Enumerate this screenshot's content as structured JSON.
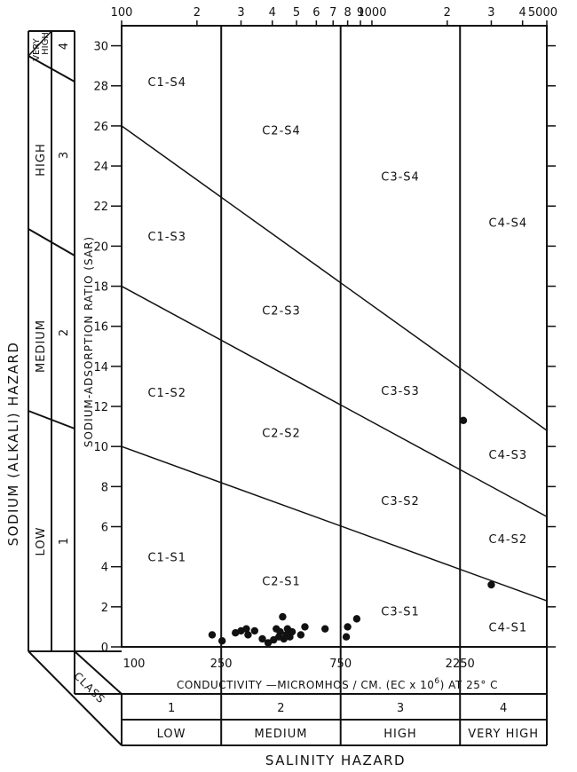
{
  "chart_data": {
    "type": "scatter",
    "title": "",
    "xlabel": "CONDUCTIVITY —MICROMHOS / CM.   (EC x 10",
    "xlabel_sup": "6",
    "xlabel_tail": ")  AT 25° C",
    "ylabel": "SODIUM-ADSORPTION   RATIO   (SAR)",
    "x_scale": "log",
    "xlim": [
      100,
      5000
    ],
    "ylim": [
      0,
      31
    ],
    "grid": false,
    "x_top_ticks": [
      {
        "v": 100,
        "t": "100"
      },
      {
        "v": 200,
        "t": "2"
      },
      {
        "v": 300,
        "t": "3"
      },
      {
        "v": 400,
        "t": "4"
      },
      {
        "v": 500,
        "t": "5"
      },
      {
        "v": 600,
        "t": "6"
      },
      {
        "v": 700,
        "t": "7"
      },
      {
        "v": 800,
        "t": "8"
      },
      {
        "v": 900,
        "t": "9"
      },
      {
        "v": 1000,
        "t": "1000"
      },
      {
        "v": 2000,
        "t": "2"
      },
      {
        "v": 3000,
        "t": "3"
      },
      {
        "v": 4000,
        "t": "4"
      },
      {
        "v": 5000,
        "t": "5000"
      }
    ],
    "x_bottom_ticks": [
      {
        "v": 100,
        "t": "100"
      },
      {
        "v": 250,
        "t": "250"
      },
      {
        "v": 750,
        "t": "750"
      },
      {
        "v": 2250,
        "t": "2250"
      }
    ],
    "y_ticks": [
      "0",
      "2",
      "4",
      "6",
      "8",
      "10",
      "12",
      "14",
      "16",
      "18",
      "20",
      "22",
      "24",
      "26",
      "28",
      "30"
    ],
    "salinity_boundaries": [
      250,
      750,
      2250
    ],
    "sodium_boundary_lines": [
      {
        "name": "S1-S2",
        "y_at_100": 10,
        "y_at_5000": 2.3
      },
      {
        "name": "S2-S3",
        "y_at_100": 18,
        "y_at_5000": 6.5
      },
      {
        "name": "S3-S4",
        "y_at_100": 26,
        "y_at_5000": 10.8
      }
    ],
    "zone_labels": [
      {
        "t": "C1-S4",
        "x": 152,
        "y": 28.2
      },
      {
        "t": "C1-S3",
        "x": 152,
        "y": 20.5
      },
      {
        "t": "C1-S2",
        "x": 152,
        "y": 12.7
      },
      {
        "t": "C1-S1",
        "x": 152,
        "y": 4.5
      },
      {
        "t": "C2-S4",
        "x": 435,
        "y": 25.8
      },
      {
        "t": "C2-S3",
        "x": 435,
        "y": 16.8
      },
      {
        "t": "C2-S2",
        "x": 435,
        "y": 10.7
      },
      {
        "t": "C2-S1",
        "x": 435,
        "y": 3.3
      },
      {
        "t": "C3-S4",
        "x": 1300,
        "y": 23.5
      },
      {
        "t": "C3-S3",
        "x": 1300,
        "y": 12.8
      },
      {
        "t": "C3-S2",
        "x": 1300,
        "y": 7.3
      },
      {
        "t": "C3-S1",
        "x": 1300,
        "y": 1.8
      },
      {
        "t": "C4-S4",
        "x": 3500,
        "y": 21.2
      },
      {
        "t": "C4-S3",
        "x": 3500,
        "y": 9.6
      },
      {
        "t": "C4-S2",
        "x": 3500,
        "y": 5.4
      },
      {
        "t": "C4-S1",
        "x": 3500,
        "y": 1.0
      }
    ],
    "points": [
      {
        "x": 230,
        "y": 0.6
      },
      {
        "x": 252,
        "y": 0.3
      },
      {
        "x": 285,
        "y": 0.7
      },
      {
        "x": 300,
        "y": 0.8
      },
      {
        "x": 315,
        "y": 0.9
      },
      {
        "x": 320,
        "y": 0.6
      },
      {
        "x": 340,
        "y": 0.8
      },
      {
        "x": 365,
        "y": 0.4
      },
      {
        "x": 385,
        "y": 0.2
      },
      {
        "x": 405,
        "y": 0.35
      },
      {
        "x": 415,
        "y": 0.9
      },
      {
        "x": 425,
        "y": 0.5
      },
      {
        "x": 430,
        "y": 0.75
      },
      {
        "x": 440,
        "y": 1.5
      },
      {
        "x": 445,
        "y": 0.4
      },
      {
        "x": 455,
        "y": 0.6
      },
      {
        "x": 460,
        "y": 0.9
      },
      {
        "x": 470,
        "y": 0.5
      },
      {
        "x": 480,
        "y": 0.75
      },
      {
        "x": 520,
        "y": 0.6
      },
      {
        "x": 540,
        "y": 1.0
      },
      {
        "x": 650,
        "y": 0.9
      },
      {
        "x": 790,
        "y": 0.5
      },
      {
        "x": 800,
        "y": 1.0
      },
      {
        "x": 870,
        "y": 1.4
      },
      {
        "x": 2320,
        "y": 11.3
      },
      {
        "x": 3000,
        "y": 3.1
      }
    ]
  },
  "sodium_hazard": {
    "title": "SODIUM  (ALKALI)  HAZARD",
    "levels": [
      {
        "name": "LOW",
        "class": "1"
      },
      {
        "name": "MEDIUM",
        "class": "2"
      },
      {
        "name": "HIGH",
        "class": "3"
      },
      {
        "name_line1": "VERY",
        "name_line2": "HIGH",
        "class": "4"
      }
    ]
  },
  "salinity_hazard": {
    "class_label": "CLASS",
    "classes": [
      "1",
      "2",
      "3",
      "4"
    ],
    "levels": [
      "LOW",
      "MEDIUM",
      "HIGH",
      "VERY HIGH"
    ],
    "title": "SALINITY   HAZARD"
  }
}
